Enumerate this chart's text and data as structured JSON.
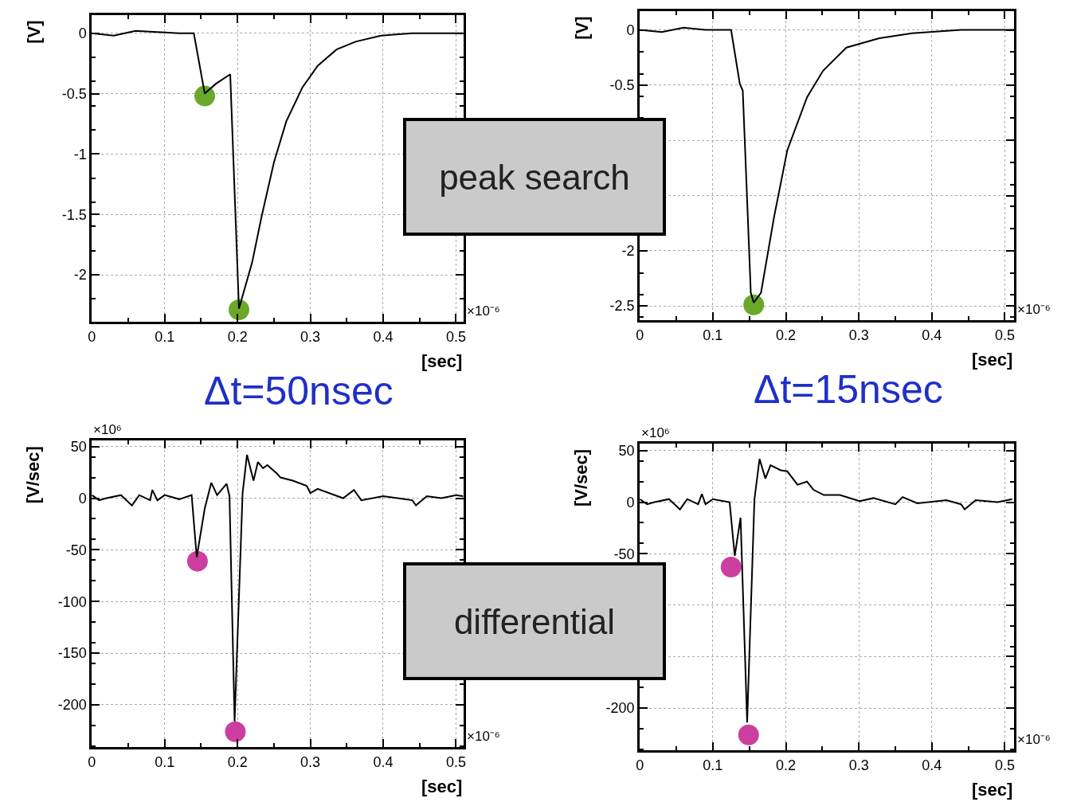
{
  "chart_data": [
    {
      "type": "line",
      "ylabel": "[V]",
      "xlabel": "[sec]",
      "xlim": [
        0,
        0.51
      ],
      "xticks": [
        0,
        0.1,
        0.2,
        0.3,
        0.4,
        0.5
      ],
      "ylim": [
        -2.39,
        0.15
      ],
      "yticks": [
        0,
        -0.5,
        -1,
        -1.5,
        -2
      ],
      "grid": true,
      "annotations": [
        "×10⁻⁶",
        "Δt=50nsec",
        "peak search"
      ],
      "series": [
        {
          "color": "#000000",
          "x": [
            0,
            0.03,
            0.06,
            0.09,
            0.12,
            0.14,
            0.155,
            0.17,
            0.19,
            0.202,
            0.22,
            0.233,
            0.25,
            0.267,
            0.289,
            0.31,
            0.336,
            0.362,
            0.397,
            0.44,
            0.51
          ],
          "values": [
            0,
            -0.02,
            0.02,
            0.01,
            0,
            0,
            -0.5,
            -0.42,
            -0.34,
            -2.28,
            -1.9,
            -1.52,
            -1.07,
            -0.73,
            -0.45,
            -0.27,
            -0.135,
            -0.07,
            -0.02,
            0,
            0
          ]
        },
        {
          "type": "scatter",
          "marker": "circle",
          "color": "#6aa82a",
          "x": [
            0.155,
            0.202
          ],
          "values": [
            -0.52,
            -2.29
          ]
        }
      ]
    },
    {
      "type": "line",
      "ylabel": "[V]",
      "xlabel": "[sec]",
      "xlim": [
        0,
        0.513
      ],
      "xticks": [
        0,
        0.1,
        0.2,
        0.3,
        0.4,
        0.5
      ],
      "ylim": [
        -2.63,
        0.17
      ],
      "yticks": [
        0,
        -0.5,
        {
          "value": -1,
          "label": null
        },
        {
          "value": -1.5,
          "label": null
        },
        -2,
        -2.5
      ],
      "grid": true,
      "annotations": [
        "×10⁻⁶",
        "Δt=15nsec"
      ],
      "series": [
        {
          "color": "#000000",
          "x": [
            0,
            0.03,
            0.06,
            0.09,
            0.125,
            0.137,
            0.141,
            0.147,
            0.152,
            0.156,
            0.166,
            0.184,
            0.202,
            0.229,
            0.251,
            0.283,
            0.328,
            0.373,
            0.44,
            0.513
          ],
          "values": [
            0,
            -0.02,
            0.02,
            0,
            0,
            -0.49,
            -0.55,
            -1.54,
            -2.38,
            -2.47,
            -2.38,
            -1.69,
            -1.09,
            -0.61,
            -0.37,
            -0.16,
            -0.075,
            -0.03,
            0,
            0
          ]
        },
        {
          "type": "scatter",
          "marker": "circle",
          "color": "#6aa82a",
          "x": [
            0.156
          ],
          "values": [
            -2.49
          ]
        }
      ]
    },
    {
      "type": "line",
      "ylabel": "[V/sec]",
      "xlabel": "[sec]",
      "xlim": [
        0,
        0.51
      ],
      "xticks": [
        0,
        0.1,
        0.2,
        0.3,
        0.4,
        0.5
      ],
      "ylim": [
        -241,
        56
      ],
      "yticks": [
        50,
        0,
        -50,
        -100,
        -150,
        -200
      ],
      "grid": true,
      "annotations": [
        "×10⁶",
        "×10⁻⁶",
        "differential"
      ],
      "series": [
        {
          "color": "#000000",
          "x": [
            0,
            0.01,
            0.02,
            0.04,
            0.055,
            0.065,
            0.08,
            0.083,
            0.09,
            0.1,
            0.12,
            0.137,
            0.144,
            0.155,
            0.164,
            0.172,
            0.185,
            0.189,
            0.196,
            0.207,
            0.213,
            0.222,
            0.228,
            0.235,
            0.241,
            0.254,
            0.259,
            0.276,
            0.295,
            0.3,
            0.31,
            0.345,
            0.36,
            0.37,
            0.4,
            0.44,
            0.445,
            0.46,
            0.48,
            0.5,
            0.51
          ],
          "values": [
            3,
            -2,
            0,
            3,
            -7,
            3,
            -2,
            8,
            -2,
            3,
            -1,
            3,
            -57,
            -10,
            15,
            3,
            14,
            2,
            -216,
            5,
            42,
            17,
            35,
            29,
            32,
            24,
            20,
            17,
            12,
            5,
            9,
            0,
            8,
            -2,
            2,
            -2,
            -7,
            2,
            0,
            3,
            2
          ]
        },
        {
          "type": "scatter",
          "marker": "circle",
          "color": "#cc3f9e",
          "x": [
            0.145,
            0.197
          ],
          "values": [
            -61,
            -226
          ]
        }
      ]
    },
    {
      "type": "line",
      "ylabel": "[V/sec]",
      "xlabel": "[sec]",
      "xlim": [
        0,
        0.513
      ],
      "xticks": [
        0,
        0.1,
        0.2,
        0.3,
        0.4,
        0.5
      ],
      "ylim": [
        -241,
        57
      ],
      "yticks": [
        50,
        0,
        -50,
        {
          "value": -100,
          "label": null
        },
        {
          "value": -150,
          "label": null
        },
        -200
      ],
      "grid": true,
      "annotations": [
        "×10⁶",
        "×10⁻⁶"
      ],
      "series": [
        {
          "color": "#000000",
          "x": [
            0,
            0.01,
            0.02,
            0.04,
            0.055,
            0.065,
            0.08,
            0.085,
            0.09,
            0.1,
            0.123,
            0.13,
            0.138,
            0.147,
            0.157,
            0.164,
            0.172,
            0.179,
            0.193,
            0.202,
            0.216,
            0.229,
            0.238,
            0.252,
            0.274,
            0.301,
            0.32,
            0.35,
            0.36,
            0.38,
            0.42,
            0.44,
            0.445,
            0.46,
            0.49,
            0.51
          ],
          "values": [
            3,
            -2,
            0,
            3,
            -7,
            3,
            -2,
            8,
            -2,
            3,
            0,
            -52,
            -15,
            -214,
            3,
            42,
            23,
            36,
            31,
            30,
            17,
            20,
            12,
            7,
            7,
            1,
            4,
            -2,
            5,
            -1,
            2,
            -2,
            -7,
            2,
            0,
            3
          ]
        },
        {
          "type": "scatter",
          "marker": "circle",
          "color": "#cc3f9e",
          "x": [
            0.125,
            0.149
          ],
          "values": [
            -63,
            -226
          ]
        }
      ]
    }
  ]
}
